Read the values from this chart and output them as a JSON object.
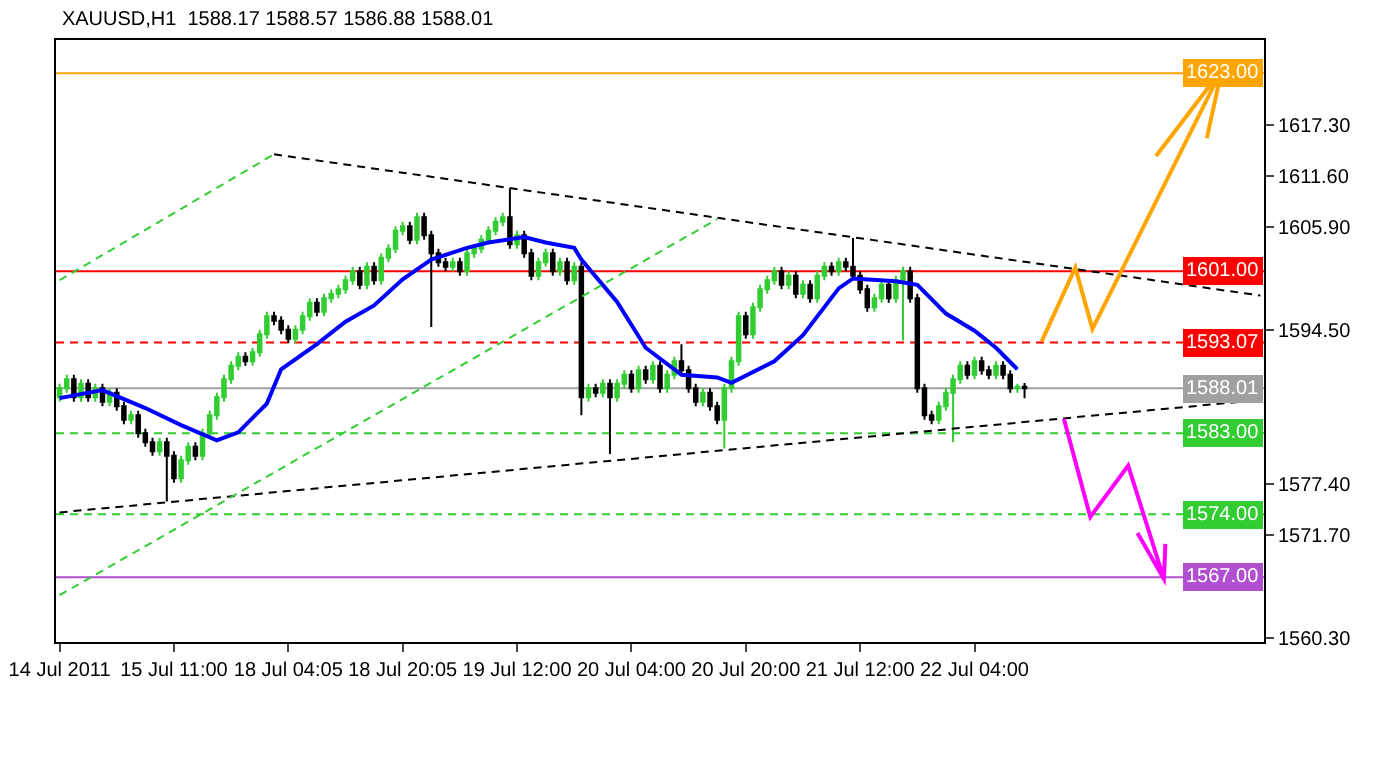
{
  "chart_data": {
    "type": "candlestick",
    "title": "XAUUSD,H1  1588.17 1588.57 1586.88 1588.01",
    "categories": [
      "14 Jul 2011",
      null,
      null,
      null,
      null,
      null,
      null,
      null,
      null,
      null,
      null,
      null,
      null,
      null,
      null,
      null,
      "15 Jul 11:00",
      null,
      null,
      null,
      null,
      null,
      null,
      null,
      null,
      null,
      null,
      null,
      null,
      null,
      null,
      null,
      "18 Jul 04:05",
      null,
      null,
      null,
      null,
      null,
      null,
      null,
      null,
      null,
      null,
      null,
      null,
      null,
      null,
      null,
      "18 Jul 20:05",
      null,
      null,
      null,
      null,
      null,
      null,
      null,
      null,
      null,
      null,
      null,
      null,
      null,
      null,
      null,
      "19 Jul 12:00",
      null,
      null,
      null,
      null,
      null,
      null,
      null,
      null,
      null,
      null,
      null,
      null,
      null,
      null,
      null,
      "20 Jul 04:00",
      null,
      null,
      null,
      null,
      null,
      null,
      null,
      null,
      null,
      null,
      null,
      null,
      null,
      null,
      null,
      "20 Jul 20:00",
      null,
      null,
      null,
      null,
      null,
      null,
      null,
      null,
      null,
      null,
      null,
      null,
      null,
      null,
      null,
      "21 Jul 12:00",
      null,
      null,
      null,
      null,
      null,
      null,
      null,
      null,
      null,
      null,
      null,
      null,
      null,
      null,
      null,
      "22 Jul 04:00",
      null,
      null,
      null,
      null,
      null,
      null,
      null,
      null,
      null,
      null,
      null,
      null,
      null,
      null,
      null,
      null,
      null,
      null,
      null,
      null,
      null,
      null,
      null,
      null,
      null,
      null,
      null,
      null,
      null,
      null,
      null,
      null,
      null,
      null,
      null,
      null,
      null,
      null,
      null,
      null
    ],
    "ohlc": [
      [
        1587.0,
        1588.5,
        1586.5,
        1588.0
      ],
      [
        1588.0,
        1589.5,
        1587.5,
        1589.0
      ],
      [
        1589.0,
        1589.5,
        1586.5,
        1587.0
      ],
      [
        1587.0,
        1589.0,
        1586.5,
        1588.5
      ],
      [
        1588.5,
        1589.0,
        1586.5,
        1587.0
      ],
      [
        1587.0,
        1588.5,
        1586.5,
        1588.0
      ],
      [
        1588.0,
        1588.5,
        1586.0,
        1586.5
      ],
      [
        1586.5,
        1588.0,
        1586.0,
        1587.5
      ],
      [
        1587.5,
        1588.0,
        1585.5,
        1586.0
      ],
      [
        1586.0,
        1586.5,
        1584.0,
        1584.5
      ],
      [
        1584.5,
        1585.5,
        1584.0,
        1585.0
      ],
      [
        1585.0,
        1585.5,
        1582.5,
        1583.0
      ],
      [
        1583.0,
        1583.5,
        1581.5,
        1582.0
      ],
      [
        1582.0,
        1582.5,
        1580.5,
        1581.0
      ],
      [
        1581.0,
        1582.5,
        1580.5,
        1582.0
      ],
      [
        1582.0,
        1582.5,
        1575.4,
        1580.5
      ],
      [
        1580.5,
        1581.0,
        1577.5,
        1578.0
      ],
      [
        1578.0,
        1580.5,
        1577.5,
        1580.0
      ],
      [
        1580.0,
        1582.0,
        1579.5,
        1581.5
      ],
      [
        1581.5,
        1582.0,
        1580.0,
        1580.5
      ],
      [
        1580.5,
        1583.5,
        1580.0,
        1583.0
      ],
      [
        1583.0,
        1585.5,
        1582.5,
        1585.0
      ],
      [
        1585.0,
        1587.5,
        1584.5,
        1587.0
      ],
      [
        1587.0,
        1589.5,
        1586.5,
        1589.0
      ],
      [
        1589.0,
        1591.0,
        1588.5,
        1590.5
      ],
      [
        1590.5,
        1592.0,
        1590.0,
        1591.5
      ],
      [
        1591.5,
        1592.0,
        1590.5,
        1591.0
      ],
      [
        1591.0,
        1592.5,
        1590.5,
        1592.0
      ],
      [
        1592.0,
        1594.5,
        1591.5,
        1594.0
      ],
      [
        1594.0,
        1596.5,
        1593.5,
        1596.0
      ],
      [
        1596.0,
        1596.5,
        1595.0,
        1595.5
      ],
      [
        1595.5,
        1596.0,
        1594.0,
        1594.5
      ],
      [
        1594.5,
        1595.0,
        1593.0,
        1593.5
      ],
      [
        1593.5,
        1595.0,
        1593.0,
        1594.5
      ],
      [
        1594.5,
        1596.5,
        1594.0,
        1596.0
      ],
      [
        1596.0,
        1598.0,
        1595.5,
        1597.5
      ],
      [
        1597.5,
        1598.0,
        1596.0,
        1596.5
      ],
      [
        1596.5,
        1598.5,
        1596.0,
        1598.0
      ],
      [
        1598.0,
        1599.0,
        1597.5,
        1598.5
      ],
      [
        1598.5,
        1599.5,
        1598.0,
        1599.0
      ],
      [
        1599.0,
        1600.5,
        1598.5,
        1600.0
      ],
      [
        1600.0,
        1601.5,
        1599.5,
        1601.0
      ],
      [
        1601.0,
        1601.5,
        1599.0,
        1599.5
      ],
      [
        1599.5,
        1602.0,
        1599.0,
        1601.5
      ],
      [
        1601.5,
        1602.0,
        1599.5,
        1600.0
      ],
      [
        1600.0,
        1603.0,
        1599.5,
        1602.5
      ],
      [
        1602.5,
        1604.0,
        1602.0,
        1603.5
      ],
      [
        1603.5,
        1606.0,
        1603.0,
        1605.5
      ],
      [
        1605.5,
        1606.5,
        1605.0,
        1606.0
      ],
      [
        1606.0,
        1606.5,
        1604.0,
        1604.5
      ],
      [
        1604.5,
        1607.5,
        1604.0,
        1607.0
      ],
      [
        1607.0,
        1607.5,
        1604.5,
        1605.0
      ],
      [
        1605.0,
        1605.5,
        1594.8,
        1603.0
      ],
      [
        1603.0,
        1603.5,
        1601.5,
        1602.0
      ],
      [
        1602.0,
        1602.5,
        1601.0,
        1601.5
      ],
      [
        1601.5,
        1602.5,
        1601.0,
        1602.0
      ],
      [
        1602.0,
        1602.5,
        1600.5,
        1601.0
      ],
      [
        1601.0,
        1603.5,
        1600.5,
        1603.0
      ],
      [
        1603.0,
        1604.0,
        1602.5,
        1603.5
      ],
      [
        1603.5,
        1605.0,
        1603.0,
        1604.5
      ],
      [
        1604.5,
        1606.0,
        1604.0,
        1605.5
      ],
      [
        1605.5,
        1607.0,
        1605.0,
        1606.5
      ],
      [
        1606.5,
        1607.5,
        1606.0,
        1607.0
      ],
      [
        1607.0,
        1610.2,
        1603.5,
        1604.0
      ],
      [
        1604.0,
        1605.5,
        1603.5,
        1605.0
      ],
      [
        1605.0,
        1605.5,
        1602.5,
        1603.0
      ],
      [
        1603.0,
        1603.5,
        1600.0,
        1600.5
      ],
      [
        1600.5,
        1602.5,
        1600.0,
        1602.0
      ],
      [
        1602.0,
        1603.5,
        1601.5,
        1603.0
      ],
      [
        1603.0,
        1603.5,
        1600.5,
        1601.0
      ],
      [
        1601.0,
        1602.5,
        1600.5,
        1602.0
      ],
      [
        1602.0,
        1602.5,
        1599.5,
        1600.0
      ],
      [
        1600.0,
        1602.0,
        1599.5,
        1601.5
      ],
      [
        1601.5,
        1602.0,
        1585.0,
        1587.0
      ],
      [
        1587.0,
        1588.5,
        1586.5,
        1588.0
      ],
      [
        1588.0,
        1588.5,
        1587.0,
        1587.5
      ],
      [
        1587.5,
        1589.0,
        1587.0,
        1588.5
      ],
      [
        1588.5,
        1589.0,
        1580.7,
        1587.0
      ],
      [
        1587.0,
        1589.0,
        1586.5,
        1588.5
      ],
      [
        1588.5,
        1590.0,
        1588.0,
        1589.5
      ],
      [
        1589.5,
        1590.0,
        1587.5,
        1588.0
      ],
      [
        1588.0,
        1590.5,
        1587.5,
        1590.0
      ],
      [
        1590.0,
        1590.5,
        1588.5,
        1589.0
      ],
      [
        1589.0,
        1591.0,
        1588.5,
        1590.5
      ],
      [
        1590.5,
        1591.0,
        1587.5,
        1588.0
      ],
      [
        1588.0,
        1590.0,
        1587.5,
        1589.5
      ],
      [
        1589.5,
        1591.5,
        1589.0,
        1591.0
      ],
      [
        1591.0,
        1592.9,
        1589.5,
        1590.0
      ],
      [
        1590.0,
        1590.5,
        1587.5,
        1588.0
      ],
      [
        1588.0,
        1588.5,
        1586.0,
        1586.5
      ],
      [
        1586.5,
        1588.0,
        1586.0,
        1587.5
      ],
      [
        1587.5,
        1588.0,
        1585.5,
        1586.0
      ],
      [
        1586.0,
        1586.5,
        1584.0,
        1584.5
      ],
      [
        1584.5,
        1588.5,
        1581.3,
        1588.0
      ],
      [
        1588.0,
        1591.5,
        1587.5,
        1591.0
      ],
      [
        1591.0,
        1596.5,
        1590.5,
        1596.0
      ],
      [
        1596.0,
        1596.5,
        1593.5,
        1594.0
      ],
      [
        1594.0,
        1597.5,
        1593.5,
        1597.0
      ],
      [
        1597.0,
        1599.5,
        1596.5,
        1599.0
      ],
      [
        1599.0,
        1600.5,
        1598.5,
        1600.0
      ],
      [
        1600.0,
        1601.5,
        1599.5,
        1601.0
      ],
      [
        1601.0,
        1601.5,
        1599.0,
        1599.5
      ],
      [
        1599.5,
        1601.0,
        1599.0,
        1600.5
      ],
      [
        1600.5,
        1601.0,
        1598.0,
        1598.5
      ],
      [
        1598.5,
        1600.0,
        1598.0,
        1599.5
      ],
      [
        1599.5,
        1600.0,
        1597.5,
        1598.0
      ],
      [
        1598.0,
        1601.0,
        1597.5,
        1600.5
      ],
      [
        1600.5,
        1602.0,
        1600.0,
        1601.5
      ],
      [
        1601.5,
        1602.0,
        1600.5,
        1601.0
      ],
      [
        1601.0,
        1602.5,
        1600.5,
        1602.0
      ],
      [
        1602.0,
        1602.5,
        1601.0,
        1601.5
      ],
      [
        1601.5,
        1604.7,
        1600.0,
        1600.5
      ],
      [
        1600.5,
        1601.0,
        1598.5,
        1599.0
      ],
      [
        1599.0,
        1599.5,
        1596.5,
        1597.0
      ],
      [
        1597.0,
        1598.5,
        1596.5,
        1598.0
      ],
      [
        1598.0,
        1600.0,
        1597.5,
        1599.5
      ],
      [
        1599.5,
        1600.0,
        1597.5,
        1598.0
      ],
      [
        1598.0,
        1600.5,
        1597.5,
        1600.0
      ],
      [
        1600.0,
        1601.5,
        1593.3,
        1601.0
      ],
      [
        1601.0,
        1601.5,
        1597.5,
        1598.0
      ],
      [
        1598.0,
        1598.5,
        1587.5,
        1588.0
      ],
      [
        1588.0,
        1588.5,
        1584.5,
        1585.0
      ],
      [
        1585.0,
        1585.5,
        1584.0,
        1584.5
      ],
      [
        1584.5,
        1586.5,
        1584.0,
        1586.0
      ],
      [
        1586.0,
        1588.0,
        1585.5,
        1587.5
      ],
      [
        1587.5,
        1589.5,
        1582.0,
        1589.0
      ],
      [
        1589.0,
        1591.0,
        1588.5,
        1590.5
      ],
      [
        1590.5,
        1591.0,
        1589.0,
        1589.5
      ],
      [
        1589.5,
        1591.5,
        1589.0,
        1591.0
      ],
      [
        1591.0,
        1591.5,
        1589.5,
        1590.0
      ],
      [
        1590.0,
        1590.5,
        1589.0,
        1589.5
      ],
      [
        1589.5,
        1591.0,
        1589.0,
        1590.5
      ],
      [
        1590.5,
        1591.0,
        1589.0,
        1589.5
      ],
      [
        1589.5,
        1590.0,
        1587.5,
        1588.0
      ],
      [
        1588.0,
        1588.5,
        1587.5,
        1588.17
      ],
      [
        1588.17,
        1588.57,
        1586.88,
        1588.01
      ],
      null,
      null,
      null,
      null,
      null,
      null,
      null,
      null,
      null,
      null,
      null,
      null,
      null,
      null,
      null,
      null,
      null,
      null,
      null,
      null,
      null,
      null,
      null,
      null,
      null,
      null,
      null,
      null,
      null,
      null,
      null,
      null,
      null
    ],
    "series": [
      {
        "type": "line",
        "color": "#0000ff",
        "line_style": "solid",
        "values": [
          1586.9,
          null,
          null,
          null,
          null,
          null,
          1587.8,
          null,
          null,
          null,
          null,
          null,
          1585.8,
          null,
          null,
          null,
          null,
          1583.9,
          null,
          null,
          null,
          null,
          1582.2,
          null,
          null,
          1583.1,
          null,
          null,
          null,
          1586.3,
          null,
          1590.1,
          null,
          null,
          null,
          null,
          1592.9,
          null,
          null,
          null,
          1595.4,
          null,
          null,
          null,
          1597.2,
          null,
          null,
          null,
          1600.1,
          null,
          null,
          null,
          1602.3,
          null,
          null,
          null,
          null,
          1603.6,
          null,
          null,
          1604.2,
          null,
          null,
          null,
          null,
          1604.8,
          null,
          null,
          1604.2,
          null,
          null,
          null,
          1603.6,
          1602.3,
          null,
          null,
          null,
          null,
          1597.6,
          null,
          null,
          null,
          1592.5,
          null,
          null,
          null,
          null,
          1589.5,
          null,
          null,
          null,
          null,
          1589.2,
          null,
          1588.6,
          null,
          null,
          null,
          null,
          null,
          1591.0,
          null,
          null,
          null,
          1593.9,
          null,
          null,
          null,
          null,
          1599.1,
          null,
          1600.2,
          null,
          null,
          null,
          null,
          null,
          1599.9,
          null,
          null,
          1599.5,
          null,
          null,
          null,
          1596.3,
          null,
          null,
          null,
          1594.4,
          null,
          null,
          1592.5,
          null,
          null,
          1590.1,
          null,
          null,
          null,
          null,
          null,
          null,
          null,
          null,
          null,
          null,
          null,
          null,
          null,
          null,
          null,
          null,
          null,
          null,
          null,
          null,
          null,
          null,
          null,
          null,
          null,
          null,
          null,
          null,
          null,
          null,
          null,
          null,
          null,
          null
        ]
      },
      {
        "type": "line",
        "color": "#000000",
        "line_style": "dashed",
        "values": [
          null,
          null,
          null,
          null,
          null,
          null,
          null,
          null,
          null,
          null,
          null,
          null,
          null,
          null,
          null,
          null,
          null,
          null,
          null,
          null,
          null,
          null,
          null,
          null,
          null,
          null,
          null,
          null,
          null,
          null,
          1614.0,
          null,
          null,
          null,
          null,
          null,
          null,
          null,
          null,
          null,
          null,
          null,
          null,
          null,
          null,
          null,
          null,
          null,
          null,
          null,
          null,
          null,
          null,
          null,
          null,
          null,
          null,
          null,
          null,
          null,
          null,
          null,
          null,
          null,
          null,
          null,
          null,
          null,
          null,
          null,
          null,
          null,
          null,
          null,
          null,
          null,
          null,
          null,
          null,
          null,
          null,
          null,
          null,
          null,
          null,
          null,
          null,
          null,
          null,
          null,
          null,
          null,
          null,
          null,
          null,
          null,
          null,
          null,
          null,
          null,
          null,
          null,
          null,
          null,
          null,
          null,
          null,
          null,
          null,
          null,
          null,
          null,
          null,
          null,
          null,
          null,
          null,
          null,
          null,
          null,
          null,
          null,
          null,
          null,
          null,
          null,
          null,
          null,
          null,
          null,
          null,
          null,
          null,
          null,
          null,
          null,
          null,
          null,
          null,
          null,
          null,
          null,
          null,
          null,
          null,
          null,
          null,
          null,
          null,
          null,
          null,
          null,
          null,
          null,
          null,
          null,
          null,
          null,
          null,
          null,
          null,
          null,
          null,
          null,
          null,
          null,
          null,
          null,
          1598.3
        ]
      },
      {
        "type": "line",
        "color": "#000000",
        "line_style": "dashed",
        "values": [
          1574.2,
          null,
          null,
          null,
          null,
          null,
          null,
          null,
          null,
          null,
          null,
          null,
          null,
          null,
          null,
          null,
          null,
          null,
          null,
          null,
          null,
          null,
          null,
          null,
          null,
          null,
          null,
          null,
          null,
          null,
          null,
          null,
          null,
          null,
          null,
          null,
          null,
          null,
          null,
          null,
          null,
          null,
          null,
          null,
          null,
          null,
          null,
          null,
          null,
          null,
          null,
          null,
          null,
          null,
          null,
          null,
          null,
          null,
          null,
          null,
          null,
          null,
          null,
          null,
          null,
          null,
          null,
          null,
          null,
          null,
          null,
          null,
          null,
          null,
          null,
          null,
          null,
          null,
          null,
          null,
          null,
          null,
          null,
          null,
          null,
          null,
          null,
          null,
          null,
          null,
          null,
          null,
          null,
          null,
          null,
          null,
          null,
          null,
          null,
          null,
          null,
          null,
          null,
          null,
          null,
          null,
          null,
          null,
          null,
          null,
          null,
          null,
          null,
          null,
          null,
          null,
          null,
          null,
          null,
          null,
          null,
          null,
          null,
          null,
          null,
          null,
          null,
          null,
          null,
          null,
          null,
          null,
          null,
          null,
          null,
          null,
          null,
          null,
          null,
          null,
          null,
          null,
          null,
          null,
          null,
          null,
          null,
          null,
          null,
          null,
          null,
          null,
          null,
          null,
          null,
          null,
          null,
          null,
          null,
          null,
          null,
          null,
          null,
          null,
          null,
          null,
          null,
          null,
          1586.7
        ]
      },
      {
        "type": "line",
        "color": "#32cd32",
        "line_style": "dashed",
        "values": [
          1600.0,
          null,
          null,
          null,
          null,
          null,
          null,
          null,
          null,
          null,
          null,
          null,
          null,
          null,
          null,
          null,
          null,
          null,
          null,
          null,
          null,
          null,
          null,
          null,
          null,
          null,
          null,
          null,
          null,
          null,
          1614.0,
          null,
          null,
          null,
          null,
          null,
          null,
          null,
          null,
          null,
          null,
          null,
          null,
          null,
          null,
          null,
          null,
          null,
          null,
          null,
          null,
          null,
          null,
          null,
          null,
          null,
          null,
          null,
          null,
          null,
          null,
          null,
          null,
          null,
          null,
          null,
          null,
          null,
          null,
          null,
          null,
          null,
          null,
          null,
          null,
          null,
          null,
          null,
          null,
          null,
          null,
          null,
          null,
          null,
          null,
          null,
          null,
          null,
          null,
          null,
          null,
          null,
          null,
          null,
          null,
          null,
          null,
          null,
          null,
          null,
          null,
          null,
          null,
          null,
          null,
          null,
          null,
          null,
          null,
          null,
          null,
          null,
          null,
          null,
          null,
          null,
          null,
          null,
          null,
          null,
          null,
          null,
          null,
          null,
          null,
          null,
          null,
          null,
          null,
          null,
          null,
          null,
          null,
          null,
          null,
          null,
          null,
          null,
          null,
          null,
          null,
          null,
          null,
          null,
          null,
          null,
          null,
          null,
          null,
          null,
          null,
          null,
          null,
          null,
          null,
          null,
          null,
          null,
          null,
          null,
          null,
          null,
          null,
          null,
          null,
          null,
          null,
          null,
          null
        ]
      },
      {
        "type": "line",
        "color": "#32cd32",
        "line_style": "dashed",
        "values": [
          1565.0,
          null,
          null,
          null,
          null,
          null,
          null,
          null,
          null,
          null,
          null,
          null,
          null,
          null,
          null,
          null,
          null,
          null,
          null,
          null,
          null,
          null,
          null,
          null,
          null,
          null,
          null,
          null,
          null,
          null,
          null,
          null,
          null,
          null,
          null,
          null,
          null,
          null,
          null,
          null,
          null,
          null,
          null,
          null,
          null,
          null,
          null,
          null,
          null,
          null,
          null,
          null,
          null,
          null,
          null,
          null,
          null,
          null,
          null,
          null,
          null,
          null,
          null,
          null,
          null,
          null,
          null,
          null,
          null,
          null,
          null,
          null,
          null,
          null,
          null,
          null,
          null,
          null,
          null,
          null,
          null,
          null,
          null,
          null,
          null,
          null,
          null,
          null,
          null,
          null,
          null,
          null,
          1606.8,
          null,
          null,
          null,
          null,
          null,
          null,
          null,
          null,
          null,
          null,
          null,
          null,
          null,
          null,
          null,
          null,
          null,
          null,
          null,
          null,
          null,
          null,
          null,
          null,
          null,
          null,
          null,
          null,
          null,
          null,
          null,
          null,
          null,
          null,
          null,
          null,
          null,
          null,
          null,
          null,
          null,
          null,
          null,
          null,
          null,
          null,
          null,
          null,
          null,
          null,
          null,
          null,
          null,
          null,
          null,
          null,
          null,
          null,
          null,
          null,
          null,
          null,
          null,
          null,
          null,
          null,
          null,
          null,
          null,
          null,
          null,
          null,
          null,
          null,
          null,
          null
        ]
      }
    ],
    "ylim": [
      1559.8,
      1626.7
    ],
    "yticks": [
      {
        "value": 1560.3,
        "label": "1560.30"
      },
      {
        "value": 1571.7,
        "label": "1571.70"
      },
      {
        "value": 1577.4,
        "label": "1577.40"
      },
      {
        "value": 1594.5,
        "label": "1594.50"
      },
      {
        "value": 1605.9,
        "label": "1605.90"
      },
      {
        "value": 1611.6,
        "label": "1611.60"
      },
      {
        "value": 1617.3,
        "label": "1617.30"
      }
    ],
    "ref_lines": [
      {
        "axis": "y",
        "value": 1623.0,
        "label": "1623.00",
        "color": "#ffa500",
        "line_style": "solid"
      },
      {
        "axis": "y",
        "value": 1601.0,
        "label": "1601.00",
        "color": "#ff0000",
        "line_style": "solid"
      },
      {
        "axis": "y",
        "value": 1593.07,
        "label": "1593.07",
        "color": "#ff0000",
        "line_style": "dashed"
      },
      {
        "axis": "y",
        "value": 1588.01,
        "label": "1588.01",
        "color": "#a0a0a0",
        "line_style": "solid"
      },
      {
        "axis": "y",
        "value": 1583.0,
        "label": "1583.00",
        "color": "#32cd32",
        "line_style": "dashed"
      },
      {
        "axis": "y",
        "value": 1574.0,
        "label": "1574.00",
        "color": "#32cd32",
        "line_style": "dashed"
      },
      {
        "axis": "y",
        "value": 1567.0,
        "label": "1567.00",
        "color": "#b050d0",
        "line_style": "solid"
      }
    ]
  }
}
